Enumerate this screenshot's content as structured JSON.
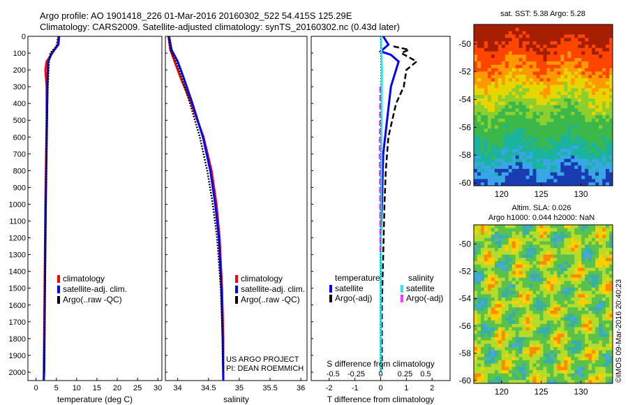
{
  "header": {
    "line1": "Argo profile: AO 1901418_226 01-Mar-2016 20160302_522 54.415S 125.29E",
    "line2": "Climatology: CARS2009. Satellite-adjusted climatology: synTS_20160302.nc (0.43d later)"
  },
  "credit": "©IMOS 09-Mar-2016 20:40:23",
  "colors": {
    "climatology": "#ff0000",
    "satellite": "#0000ff",
    "argo": "#000000",
    "sal_satellite": "#33e6e6",
    "sal_argo": "#ff33ff"
  },
  "chart_data": [
    {
      "id": "temperature",
      "type": "line",
      "xlabel": "temperature (deg C)",
      "ylabel": "",
      "xlim": [
        -2,
        31
      ],
      "ylim": [
        0,
        2050
      ],
      "y_reversed": true,
      "xticks": [
        0,
        5,
        10,
        15,
        20,
        25,
        30
      ],
      "yticks": [
        0,
        100,
        200,
        300,
        400,
        500,
        600,
        700,
        800,
        900,
        1000,
        1100,
        1200,
        1300,
        1400,
        1500,
        1600,
        1700,
        1800,
        1900,
        2000
      ],
      "legend": [
        "climatology",
        "satellite-adj. clim.",
        "Argo(..raw -QC)"
      ],
      "series": [
        {
          "name": "climatology",
          "color": "#ff0000",
          "style": "solid",
          "depth": [
            0,
            50,
            100,
            150,
            200,
            300,
            500,
            1000,
            1500,
            2000,
            2050
          ],
          "values": [
            5.6,
            5.4,
            4.0,
            2.6,
            2.3,
            2.6,
            2.6,
            2.3,
            2.1,
            1.9,
            1.9
          ]
        },
        {
          "name": "satellite-adj. clim.",
          "color": "#0000ff",
          "style": "solid",
          "depth": [
            0,
            50,
            100,
            150,
            200,
            300,
            500,
            1000,
            1500,
            2000,
            2050
          ],
          "values": [
            5.7,
            5.5,
            3.9,
            3.0,
            2.9,
            2.8,
            2.7,
            2.4,
            2.2,
            2.0,
            1.9
          ]
        },
        {
          "name": "Argo(..raw -QC)",
          "color": "#000000",
          "style": "dotted",
          "depth": [
            0,
            60,
            100,
            150,
            200,
            300,
            500,
            800,
            1000,
            1500,
            2000
          ],
          "values": [
            5.5,
            5.0,
            3.5,
            3.2,
            3.1,
            2.9,
            2.7,
            2.5,
            2.4,
            2.2,
            2.0
          ]
        }
      ]
    },
    {
      "id": "salinity",
      "type": "line",
      "xlabel": "salinity",
      "ylabel": "",
      "xlim": [
        33.8,
        36.1
      ],
      "ylim": [
        0,
        2050
      ],
      "y_reversed": true,
      "xticks": [
        34,
        34.5,
        35,
        35.5,
        36
      ],
      "legend": [
        "climatology",
        "satellite-adj. clim.",
        "Argo(..raw -QC)"
      ],
      "series": [
        {
          "name": "climatology",
          "color": "#ff0000",
          "style": "solid",
          "depth": [
            0,
            80,
            150,
            250,
            400,
            600,
            800,
            1000,
            1200,
            1500,
            1800,
            2050
          ],
          "values": [
            33.85,
            33.88,
            33.95,
            34.05,
            34.22,
            34.42,
            34.55,
            34.63,
            34.68,
            34.72,
            34.74,
            34.74
          ]
        },
        {
          "name": "satellite-adj. clim.",
          "color": "#0000ff",
          "style": "solid",
          "depth": [
            0,
            80,
            150,
            250,
            400,
            600,
            800,
            1000,
            1200,
            1500,
            1800,
            2050
          ],
          "values": [
            33.86,
            33.9,
            34.0,
            34.1,
            34.24,
            34.41,
            34.53,
            34.61,
            34.67,
            34.71,
            34.73,
            34.74
          ]
        },
        {
          "name": "Argo(..raw -QC)",
          "color": "#000000",
          "style": "dotted",
          "depth": [
            0,
            80,
            150,
            250,
            400,
            600,
            800,
            1000,
            1200,
            1500,
            1800,
            2000
          ],
          "values": [
            33.85,
            33.88,
            33.97,
            34.07,
            34.2,
            34.36,
            34.48,
            34.57,
            34.64,
            34.7,
            34.73,
            34.74
          ]
        }
      ],
      "annotation": [
        "US ARGO PROJECT",
        "PI: DEAN ROEMMICH"
      ]
    },
    {
      "id": "difference",
      "type": "line",
      "xlabel": "T difference from climatology",
      "xlabel_top": "S difference from climatology",
      "xlim": [
        -2.7,
        2.7
      ],
      "ylim": [
        0,
        2050
      ],
      "y_reversed": true,
      "xticks": [
        -2,
        -1,
        0,
        1,
        2
      ],
      "sticks": [
        "-0.5",
        "-0.25",
        "0",
        "0.25",
        "0.5"
      ],
      "legend_headers": [
        "temperature",
        "salinity"
      ],
      "legend": [
        "satellite",
        "Argo(-adj)",
        "satellite",
        "Argo(-adj)"
      ],
      "series": [
        {
          "name": "satellite",
          "group": "temperature",
          "color": "#0000ff",
          "style": "solid",
          "depth": [
            0,
            50,
            90,
            110,
            150,
            200,
            300,
            500,
            700,
            1000,
            1200
          ],
          "values": [
            0.1,
            0.3,
            0.0,
            0.4,
            0.7,
            0.6,
            0.4,
            0.25,
            0.1,
            0.05,
            0.0
          ]
        },
        {
          "name": "Argo(-adj)",
          "group": "temperature",
          "color": "#000000",
          "style": "dashed",
          "depth": [
            60,
            80,
            100,
            150,
            200,
            300,
            400,
            500,
            600,
            800,
            1000,
            1300,
            1600,
            2000
          ],
          "values": [
            0.5,
            1.1,
            0.8,
            1.4,
            1.0,
            0.9,
            0.6,
            0.45,
            0.3,
            0.2,
            0.15,
            0.1,
            0.05,
            0.05
          ]
        },
        {
          "name": "satellite",
          "group": "salinity",
          "color": "#33e6e6",
          "style": "solid",
          "depth": [
            0,
            100,
            200,
            400,
            600,
            800,
            1000,
            1200,
            1500,
            2000
          ],
          "values": [
            0.01,
            0.03,
            0.05,
            0.04,
            0.03,
            0.02,
            0.01,
            0.0,
            0.0,
            0.0
          ]
        },
        {
          "name": "Argo(-adj)",
          "group": "salinity",
          "color": "#ff33ff",
          "style": "dashed",
          "depth": [
            300,
            500,
            700,
            900,
            1100,
            1300
          ],
          "values": [
            -0.02,
            -0.03,
            -0.04,
            -0.03,
            -0.02,
            -0.01
          ]
        }
      ]
    },
    {
      "id": "sst_map",
      "type": "heatmap",
      "title": "sat. SST: 5.38 Argo: 5.28",
      "xlim": [
        116.5,
        134
      ],
      "ylim": [
        -60.2,
        -48.6
      ],
      "xticks": [
        120,
        125,
        130
      ],
      "yticks": [
        -50,
        -52,
        -54,
        -56,
        -58,
        -60
      ]
    },
    {
      "id": "sla_map",
      "type": "heatmap",
      "title_lines": [
        "Altim. SLA: 0.026",
        "Argo h1000: 0.044 h2000: NaN"
      ],
      "xlim": [
        116.5,
        134
      ],
      "ylim": [
        -60.2,
        -48.6
      ],
      "xticks": [
        120,
        125,
        130
      ],
      "yticks": [
        -50,
        -52,
        -54,
        -56,
        -58,
        -60
      ]
    }
  ]
}
